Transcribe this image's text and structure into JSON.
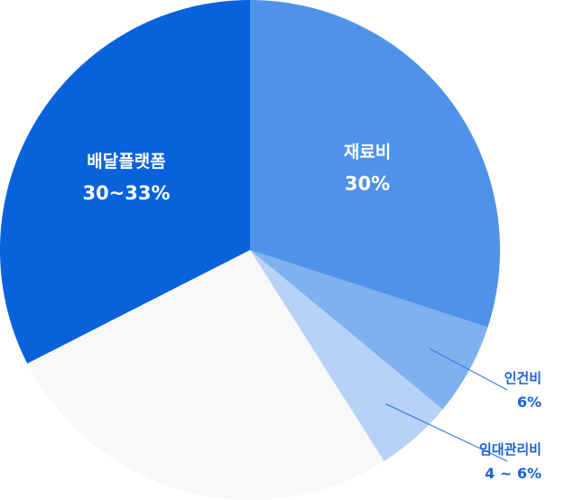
{
  "chart_data": {
    "type": "pie",
    "title": "",
    "slices": [
      {
        "name": "재료비",
        "value_label": "30%",
        "value": 30,
        "color": "#4f93e8",
        "label_position": "inside"
      },
      {
        "name": "인건비",
        "value_label": "6%",
        "value": 6,
        "color": "#7fb0ef",
        "label_position": "outside"
      },
      {
        "name": "임대관리비",
        "value_label": "4 ~ 6%",
        "value": 5,
        "color": "#b6d2f7",
        "label_position": "outside"
      },
      {
        "name": "",
        "value_label": "",
        "value": 26.5,
        "color": "#f8f8f8",
        "label_position": "none"
      },
      {
        "name": "배달플랫폼",
        "value_label": "30~33%",
        "value": 32.5,
        "color": "#0762dc",
        "label_position": "inside"
      }
    ],
    "start": "12 o'clock",
    "direction": "clockwise",
    "legend": "none"
  }
}
